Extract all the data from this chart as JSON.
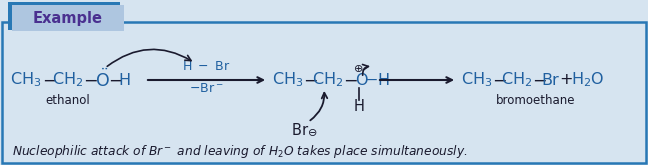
{
  "bg_color": "#d6e4f0",
  "border_color": "#2878b5",
  "example_tab_dark": "#2878b5",
  "example_tab_light": "#aec6e0",
  "example_text": "Example",
  "example_text_color": "#4a3090",
  "main_text_color": "#1a1a2e",
  "blue_chem_color": "#2060a0",
  "fig_width": 6.48,
  "fig_height": 1.65,
  "dpi": 100
}
